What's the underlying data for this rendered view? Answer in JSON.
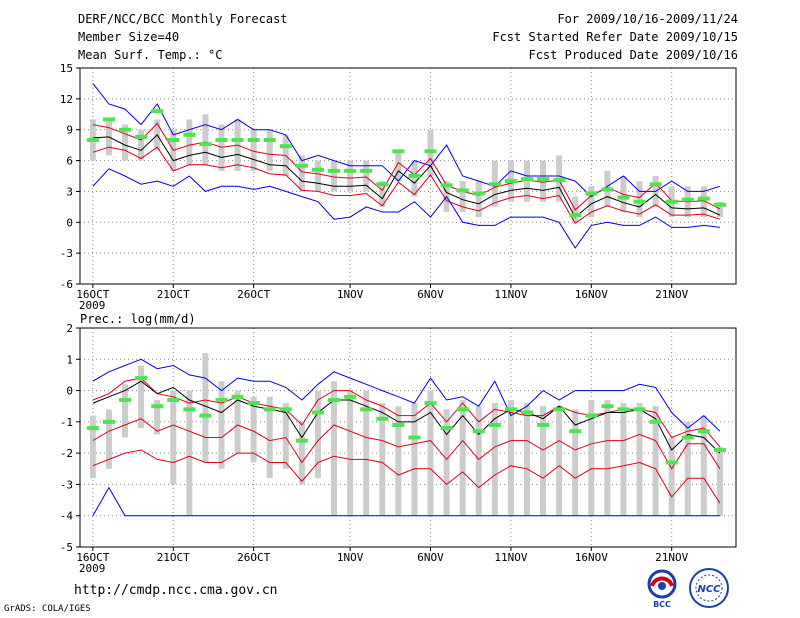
{
  "header": {
    "title": "DERF/NCC/BCC Monthly Forecast",
    "member_size": "Member Size=40",
    "variable": "Mean Surf. Temp.: °C",
    "period": "For 2009/10/16-2009/11/24",
    "started": "Fcst Started Refer Date 2009/10/15",
    "produced": "Fcst Produced Date 2009/10/16"
  },
  "footer": {
    "url": "http://cmdp.ncc.cma.gov.cn",
    "credit": "GrADS: COLA/IGES",
    "logo_left_text": "BCC",
    "logo_right_text": "NCC"
  },
  "colors": {
    "ensemble_mean": "#000000",
    "spread_lines": "#e0001b",
    "extreme_lines": "#0000e6",
    "range_bars": "#cccccc",
    "observed_markers": "#4ce64c",
    "grid": "#888888"
  },
  "chart_data": [
    {
      "type": "line",
      "title": "Mean Surf. Temp.: °C",
      "ylabel": "°C",
      "ylim": [
        -6,
        15
      ],
      "yticks": [
        -6,
        -3,
        0,
        3,
        6,
        9,
        12,
        15
      ],
      "x": [
        0,
        1,
        2,
        3,
        4,
        5,
        6,
        7,
        8,
        9,
        10,
        11,
        12,
        13,
        14,
        15,
        16,
        17,
        18,
        19,
        20,
        21,
        22,
        23,
        24,
        25,
        26,
        27,
        28,
        29,
        30,
        31,
        32,
        33,
        34,
        35,
        36,
        37,
        38,
        39
      ],
      "xlim": [
        -0.8,
        40
      ],
      "xticks": [
        {
          "x": 0,
          "label": "16OCT",
          "sub": "2009"
        },
        {
          "x": 5,
          "label": "21OCT"
        },
        {
          "x": 10,
          "label": "26OCT"
        },
        {
          "x": 16,
          "label": "1NOV"
        },
        {
          "x": 21,
          "label": "6NOV"
        },
        {
          "x": 26,
          "label": "11NOV"
        },
        {
          "x": 31,
          "label": "16NOV"
        },
        {
          "x": 36,
          "label": "21NOV"
        }
      ],
      "series": [
        {
          "name": "max",
          "role": "extreme",
          "values": [
            13.5,
            11.5,
            11,
            9.5,
            11.5,
            8.5,
            9,
            9.5,
            9,
            10,
            9,
            9,
            8.5,
            6,
            6.5,
            6,
            5.5,
            5.5,
            5.5,
            4,
            6,
            5.5,
            7.5,
            4.5,
            4,
            3.5,
            5,
            4.5,
            4.5,
            4.5,
            4,
            2.5,
            3.5,
            4.5,
            3,
            3,
            4,
            3,
            3,
            3.5
          ]
        },
        {
          "name": "upper",
          "role": "spread",
          "values": [
            9.5,
            9.2,
            8.6,
            8,
            9.6,
            7,
            7.5,
            7.8,
            7.3,
            7.5,
            6.9,
            6.6,
            6.5,
            4.9,
            4.7,
            4.4,
            4.3,
            4.4,
            3.1,
            5.8,
            4.6,
            6.2,
            3.6,
            3,
            2.6,
            3.4,
            3.8,
            4.1,
            3.9,
            4.1,
            1.2,
            2.6,
            3.4,
            2.7,
            2.4,
            3.8,
            2.1,
            2,
            2.1,
            1.3
          ]
        },
        {
          "name": "mean",
          "role": "mean",
          "values": [
            8.2,
            8.3,
            7.5,
            7,
            8.5,
            6,
            6.5,
            6.8,
            6.3,
            6.6,
            6.1,
            5.6,
            5.5,
            4,
            3.8,
            3.5,
            3.5,
            3.6,
            2.3,
            5,
            3.8,
            5.5,
            2.9,
            2.2,
            1.8,
            2.7,
            3.1,
            3.3,
            3.1,
            3.4,
            0.5,
            1.8,
            2.5,
            1.9,
            1.5,
            2.7,
            1.4,
            1.3,
            1.4,
            0.7
          ]
        },
        {
          "name": "lower",
          "role": "spread",
          "values": [
            6.8,
            7.3,
            7,
            6.2,
            7.3,
            5,
            5.6,
            5.6,
            5.3,
            5.6,
            5.3,
            4.7,
            4.6,
            3.1,
            3,
            2.6,
            2.6,
            2.8,
            1.6,
            3.9,
            2.7,
            4.6,
            2.1,
            1.5,
            1.1,
            1.9,
            2.4,
            2.6,
            2.3,
            2.6,
            -0.1,
            1,
            1.6,
            1.1,
            0.8,
            1.7,
            0.7,
            0.7,
            0.8,
            0.3
          ]
        },
        {
          "name": "min",
          "role": "extreme",
          "values": [
            3.5,
            5.2,
            4.5,
            3.7,
            4,
            3.5,
            4.5,
            3,
            3.5,
            3.5,
            3.2,
            3.5,
            3,
            2.5,
            2,
            0.3,
            0.5,
            1.5,
            1,
            1,
            2,
            0.5,
            2.5,
            0,
            -0.3,
            -0.3,
            0.5,
            0.5,
            0.5,
            0,
            -2.5,
            -0.3,
            0,
            -0.3,
            -0.3,
            0.5,
            -0.5,
            -0.5,
            -0.3,
            -0.5
          ]
        }
      ],
      "range_bars": {
        "low": [
          6,
          6.5,
          6,
          6,
          7,
          5,
          5.5,
          5.5,
          5,
          5,
          5,
          5,
          4.5,
          3,
          3,
          3,
          3,
          3,
          1.5,
          4,
          2.5,
          4.5,
          1,
          1,
          0.5,
          1.5,
          2,
          2,
          2,
          2,
          0,
          0.5,
          1.5,
          1,
          0.5,
          1.5,
          0.5,
          0.5,
          0.5,
          0.5
        ],
        "high": [
          10,
          10,
          9.5,
          9,
          10,
          9,
          10,
          10.5,
          9.5,
          10,
          9,
          9,
          8.5,
          6.5,
          6,
          6,
          6,
          6,
          4,
          7,
          6,
          9,
          4,
          4,
          4,
          6,
          6,
          6,
          6,
          6.5,
          2.5,
          3.5,
          5,
          4.5,
          4,
          4.5,
          3.5,
          3.5,
          3.5,
          2
        ]
      },
      "observed": [
        8,
        10,
        9,
        8.3,
        10.8,
        8,
        8.5,
        7.6,
        8,
        8,
        8,
        8,
        7.4,
        5.5,
        5.1,
        5,
        5,
        5,
        3.7,
        6.9,
        4.5,
        6.9,
        3.6,
        3.1,
        2.8,
        3.7,
        4,
        4.2,
        4.2,
        4.1,
        0.7,
        2.8,
        3.2,
        2.4,
        2,
        3.7,
        2,
        2.2,
        2.3,
        1.7
      ]
    },
    {
      "type": "line",
      "title": "Prec.: log(mm/d)",
      "ylabel": "log(mm/d)",
      "ylim": [
        -5,
        2
      ],
      "yticks": [
        -5,
        -4,
        -3,
        -2,
        -1,
        0,
        1,
        2
      ],
      "x": [
        0,
        1,
        2,
        3,
        4,
        5,
        6,
        7,
        8,
        9,
        10,
        11,
        12,
        13,
        14,
        15,
        16,
        17,
        18,
        19,
        20,
        21,
        22,
        23,
        24,
        25,
        26,
        27,
        28,
        29,
        30,
        31,
        32,
        33,
        34,
        35,
        36,
        37,
        38,
        39
      ],
      "xlim": [
        -0.8,
        40
      ],
      "xticks": [
        {
          "x": 0,
          "label": "16OCT",
          "sub": "2009"
        },
        {
          "x": 5,
          "label": "21OCT"
        },
        {
          "x": 10,
          "label": "26OCT"
        },
        {
          "x": 16,
          "label": "1NOV"
        },
        {
          "x": 21,
          "label": "6NOV"
        },
        {
          "x": 26,
          "label": "11NOV"
        },
        {
          "x": 31,
          "label": "16NOV"
        },
        {
          "x": 36,
          "label": "21NOV"
        }
      ],
      "series": [
        {
          "name": "max",
          "role": "extreme",
          "values": [
            0.3,
            0.6,
            0.8,
            1,
            0.7,
            0.8,
            0.5,
            0.4,
            0,
            0.4,
            0.3,
            0.3,
            0.1,
            -0.3,
            0.2,
            0.6,
            0.4,
            0.2,
            0,
            -0.2,
            -0.4,
            0.4,
            -0.3,
            -0.2,
            -0.5,
            0.3,
            -0.8,
            -0.5,
            0,
            -0.3,
            0,
            0,
            0,
            0,
            0.2,
            0.1,
            -0.7,
            -1.2,
            -0.8,
            -1.3
          ]
        },
        {
          "name": "upper",
          "role": "spread",
          "values": [
            -0.3,
            -0.1,
            0.3,
            0.4,
            -0.1,
            -0.2,
            -0.4,
            -0.3,
            -0.4,
            -0.2,
            -0.4,
            -0.5,
            -0.6,
            -1.1,
            -0.3,
            0,
            0,
            -0.3,
            -0.5,
            -0.8,
            -0.8,
            -0.4,
            -1,
            -0.4,
            -1,
            -0.6,
            -0.7,
            -0.8,
            -0.8,
            -0.5,
            -0.7,
            -0.8,
            -0.7,
            -0.6,
            -0.6,
            -0.7,
            -1.5,
            -1.3,
            -1.2,
            -1.8
          ]
        },
        {
          "name": "mean",
          "role": "mean",
          "values": [
            -0.4,
            -0.2,
            0,
            0.3,
            -0.1,
            0.1,
            -0.3,
            -0.5,
            -0.7,
            -0.3,
            -0.5,
            -0.6,
            -0.7,
            -1.5,
            -0.7,
            -0.3,
            -0.3,
            -0.5,
            -0.7,
            -1,
            -1,
            -0.7,
            -1.4,
            -0.8,
            -1.4,
            -0.9,
            -0.6,
            -0.7,
            -0.9,
            -0.5,
            -1.1,
            -0.9,
            -0.7,
            -0.7,
            -0.6,
            -0.9,
            -1.9,
            -1.4,
            -1.5,
            -2
          ]
        },
        {
          "name": "lower",
          "role": "spread",
          "values": [
            -1.6,
            -1.3,
            -1.1,
            -0.9,
            -1.3,
            -1.1,
            -1.3,
            -1.5,
            -1.5,
            -1.1,
            -1.3,
            -1.6,
            -1.5,
            -2.3,
            -1.6,
            -1.1,
            -1.3,
            -1.5,
            -1.6,
            -1.8,
            -1.7,
            -1.6,
            -2.2,
            -1.6,
            -2.2,
            -1.8,
            -1.6,
            -1.6,
            -1.9,
            -1.6,
            -1.9,
            -1.7,
            -1.6,
            -1.6,
            -1.4,
            -1.6,
            -2.5,
            -1.7,
            -1.7,
            -2.5
          ]
        },
        {
          "name": "lower2",
          "role": "spread",
          "values": [
            -2.4,
            -2.2,
            -2,
            -1.9,
            -2.2,
            -2.3,
            -2.1,
            -2.3,
            -2.3,
            -2,
            -2,
            -2.3,
            -2.3,
            -2.9,
            -2.3,
            -2.1,
            -2.2,
            -2.2,
            -2.3,
            -2.7,
            -2.5,
            -2.5,
            -3,
            -2.6,
            -3.1,
            -2.7,
            -2.4,
            -2.5,
            -2.8,
            -2.4,
            -2.8,
            -2.5,
            -2.5,
            -2.4,
            -2.3,
            -2.5,
            -3.4,
            -2.8,
            -2.8,
            -3.6
          ]
        },
        {
          "name": "min",
          "role": "extreme",
          "values": [
            -4,
            -3.1,
            -4,
            -4,
            -4,
            -4,
            -4,
            -4,
            -4,
            -4,
            -4,
            -4,
            -4,
            -4,
            -4,
            -4,
            -4,
            -4,
            -4,
            -4,
            -4,
            -4,
            -4,
            -4,
            -4,
            -4,
            -4,
            -4,
            -4,
            -4,
            -4,
            -4,
            -4,
            -4,
            -4,
            -4,
            -4,
            -4,
            -4,
            -4
          ]
        }
      ],
      "range_bars": {
        "low": [
          -2.8,
          -2.5,
          -1.5,
          -1.2,
          -1.4,
          -3,
          -4,
          -2.3,
          -2.5,
          -2,
          -2.3,
          -2.8,
          -2.5,
          -3,
          -2.8,
          -4,
          -4,
          -4,
          -4,
          -4,
          -4,
          -4,
          -4,
          -4,
          -4,
          -4,
          -4,
          -4,
          -4,
          -4,
          -4,
          -4,
          -4,
          -4,
          -4,
          -4,
          -4,
          -4,
          -4,
          -4
        ],
        "high": [
          -0.8,
          -0.6,
          0.2,
          0.8,
          -0.3,
          0,
          0,
          1.2,
          0.3,
          0,
          -0.2,
          -0.2,
          -0.4,
          -1,
          0,
          0.3,
          0,
          0,
          -0.4,
          -0.5,
          -0.4,
          0,
          -0.6,
          -0.3,
          -0.5,
          -0.4,
          -0.3,
          -0.4,
          -0.5,
          -0.5,
          -0.6,
          -0.3,
          -0.3,
          -0.4,
          -0.4,
          -0.5,
          -1.5,
          -1,
          -0.8,
          -1.8
        ]
      },
      "observed": [
        -1.2,
        -1,
        -0.3,
        0.4,
        -0.5,
        -0.3,
        -0.6,
        -0.8,
        -0.3,
        -0.2,
        -0.4,
        -0.6,
        -0.6,
        -1.6,
        -0.7,
        -0.3,
        -0.2,
        -0.6,
        -0.9,
        -1.1,
        -1.5,
        -0.4,
        -1.2,
        -0.6,
        -1.3,
        -1.1,
        -0.6,
        -0.7,
        -1.1,
        -0.6,
        -1.3,
        -0.8,
        -0.5,
        -0.6,
        -0.6,
        -1,
        -2.3,
        -1.5,
        -1.3,
        -1.9
      ]
    }
  ]
}
